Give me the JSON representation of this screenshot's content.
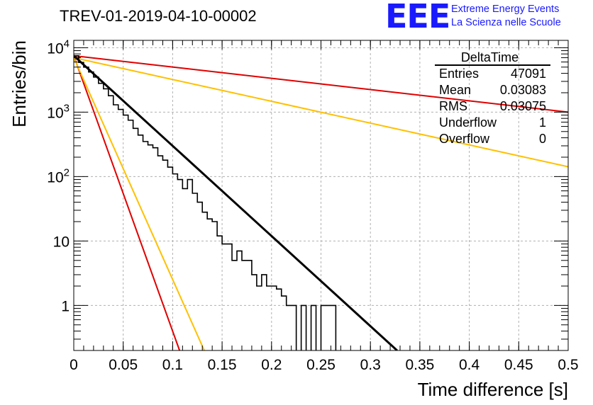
{
  "header": {
    "title": "TREV-01-2019-04-10-00002",
    "logo_text": "EEE",
    "logo_line1": "Extreme Energy Events",
    "logo_line2": "La Scienza nelle Scuole"
  },
  "colors": {
    "histogram": "#000000",
    "red_curve": "#e00000",
    "orange_curve": "#ffc000",
    "grid": "#b0b0b0"
  },
  "chart_data": {
    "type": "line",
    "title": "TREV-01-2019-04-10-00002",
    "xlabel": "Time difference [s]",
    "ylabel": "Entries/bin",
    "xlim": [
      0,
      0.5
    ],
    "ylim": [
      0.2,
      13000
    ],
    "yscale": "log",
    "grid": true,
    "x_ticks": [
      "0",
      "0.05",
      "0.1",
      "0.15",
      "0.2",
      "0.25",
      "0.3",
      "0.35",
      "0.4",
      "0.45",
      "0.5"
    ],
    "y_ticks": [
      "1",
      "10",
      "10^2",
      "10^3",
      "10^4"
    ],
    "histogram": {
      "name": "DeltaTime",
      "bin_width": 0.005,
      "counts": [
        7500,
        5900,
        5000,
        4200,
        3500,
        2800,
        2300,
        1800,
        1300,
        1100,
        900,
        750,
        560,
        440,
        350,
        310,
        280,
        210,
        180,
        140,
        110,
        90,
        65,
        90,
        55,
        40,
        28,
        22,
        20,
        12,
        9,
        9,
        5,
        7,
        5,
        5,
        3,
        2,
        3,
        2,
        2,
        1.8,
        1.4,
        1,
        1,
        0,
        1,
        0,
        1,
        0,
        1,
        1,
        1,
        0,
        0,
        0,
        0,
        0,
        0,
        0,
        0,
        0,
        0,
        0,
        0,
        0,
        0,
        0,
        0,
        0,
        0,
        0,
        0,
        0,
        0,
        0,
        0,
        0,
        0,
        0,
        0,
        0,
        0,
        0,
        0,
        0,
        0,
        0,
        0,
        0,
        0,
        0,
        0,
        0,
        0,
        0,
        0,
        0,
        0,
        0
      ]
    },
    "fits": [
      {
        "color": "black",
        "x": [
          0,
          0.327
        ],
        "y": [
          7500,
          0.2
        ]
      },
      {
        "color": "red",
        "x": [
          0,
          0.5
        ],
        "y": [
          7500,
          1000
        ]
      },
      {
        "color": "red",
        "x": [
          0,
          0.107
        ],
        "y": [
          7500,
          0.2
        ]
      },
      {
        "color": "orange",
        "x": [
          0,
          0.5
        ],
        "y": [
          7000,
          142
        ]
      },
      {
        "color": "orange",
        "x": [
          0,
          0.132
        ],
        "y": [
          7000,
          0.2
        ]
      }
    ],
    "stats_box": {
      "title": "DeltaTime",
      "rows": [
        {
          "label": "Entries",
          "value": "47091"
        },
        {
          "label": "Mean",
          "value": "0.03083"
        },
        {
          "label": "RMS",
          "value": "0.03075"
        },
        {
          "label": "Underflow",
          "value": "1"
        },
        {
          "label": "Overflow",
          "value": "0"
        }
      ]
    }
  }
}
